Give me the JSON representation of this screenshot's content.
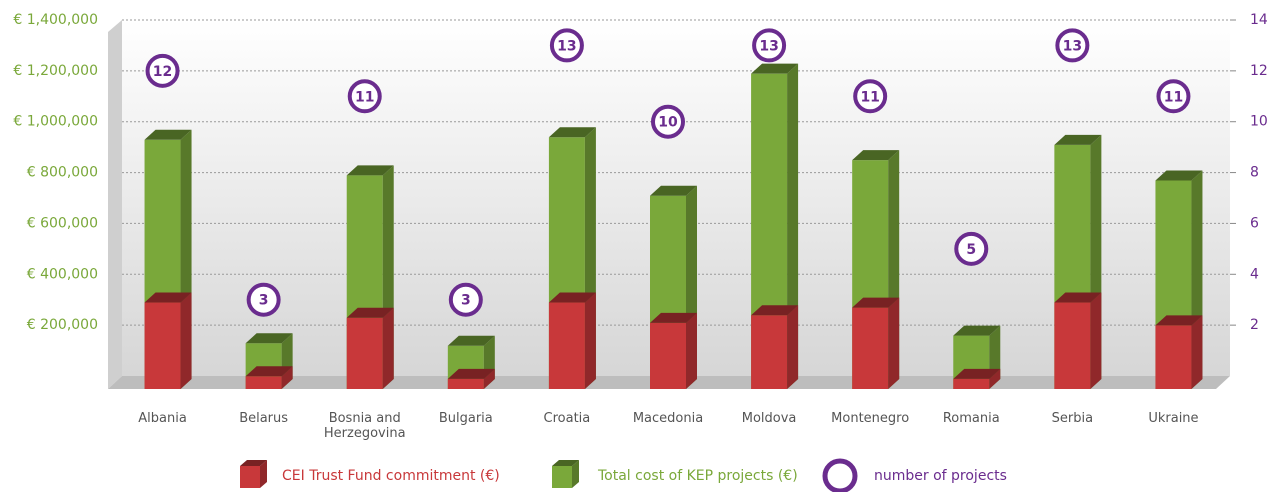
{
  "chart_data": {
    "type": "bar",
    "categories": [
      "Albania",
      "Belarus",
      "Bosnia and Herzegovina",
      "Bulgaria",
      "Croatia",
      "Macedonia",
      "Moldova",
      "Montenegro",
      "Romania",
      "Serbia",
      "Ukraine"
    ],
    "series": [
      {
        "name": "CEI Trust Fund commitment (€)",
        "color": "#c8383a",
        "values": [
          340000,
          50000,
          280000,
          40000,
          340000,
          260000,
          290000,
          320000,
          40000,
          340000,
          250000
        ]
      },
      {
        "name": "Total cost of KEP projects (€)",
        "color": "#7aa83a",
        "values": [
          980000,
          180000,
          840000,
          170000,
          990000,
          760000,
          1240000,
          900000,
          210000,
          960000,
          820000
        ]
      },
      {
        "name": "number of projects",
        "color": "#6a2c8e",
        "axis": "y2",
        "values": [
          12,
          3,
          11,
          3,
          13,
          10,
          13,
          11,
          5,
          13,
          11
        ]
      }
    ],
    "ylim": [
      0,
      1400000
    ],
    "yticks": [
      {
        "value": 200000,
        "label": "€ 200,000"
      },
      {
        "value": 400000,
        "label": "€ 400,000"
      },
      {
        "value": 600000,
        "label": "€ 600,000"
      },
      {
        "value": 800000,
        "label": "€ 800,000"
      },
      {
        "value": 1000000,
        "label": "€ 1,000,000"
      },
      {
        "value": 1200000,
        "label": "€ 1,200,000"
      },
      {
        "value": 1400000,
        "label": "€ 1,400,000"
      }
    ],
    "y2lim": [
      0,
      14
    ],
    "y2ticks": [
      2,
      4,
      6,
      8,
      10,
      12,
      14
    ],
    "grid": true
  }
}
